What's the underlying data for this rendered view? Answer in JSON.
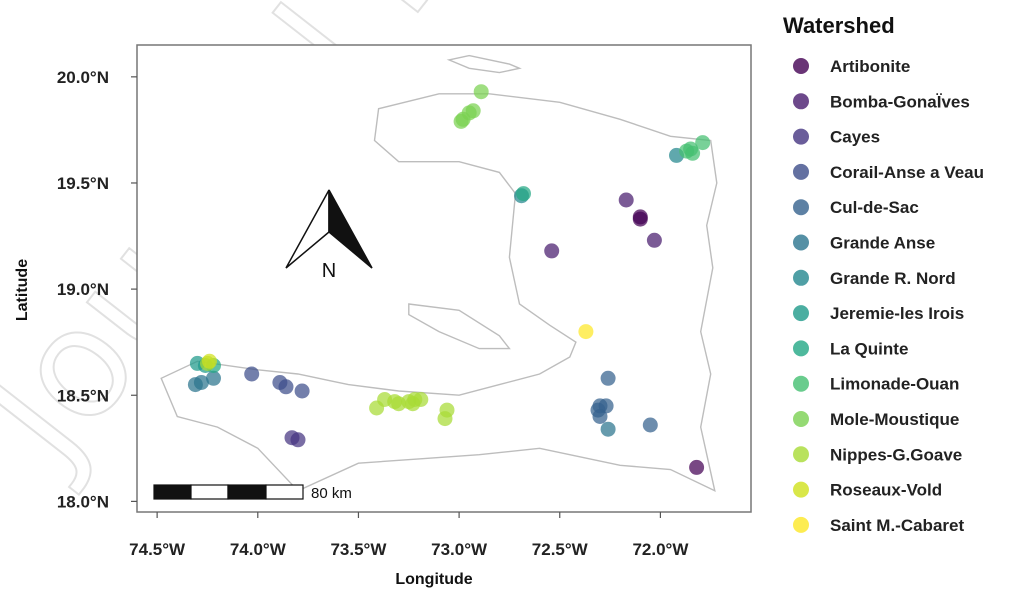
{
  "watermark": "Journal P",
  "chart_data": {
    "type": "scatter",
    "xlabel": "Longitude",
    "ylabel": "Latitude",
    "xlim": [
      -74.6,
      -71.55
    ],
    "ylim": [
      17.95,
      20.15
    ],
    "x_ticks": [
      {
        "value": -74.5,
        "label": "74.5°W"
      },
      {
        "value": -74.0,
        "label": "74.0°W"
      },
      {
        "value": -73.5,
        "label": "73.5°W"
      },
      {
        "value": -73.0,
        "label": "73.0°W"
      },
      {
        "value": -72.5,
        "label": "72.5°W"
      },
      {
        "value": -72.0,
        "label": "72.0°W"
      }
    ],
    "y_ticks": [
      {
        "value": 20.0,
        "label": "20.0°N"
      },
      {
        "value": 19.5,
        "label": "19.5°N"
      },
      {
        "value": 19.0,
        "label": "19.0°N"
      },
      {
        "value": 18.5,
        "label": "18.5°N"
      },
      {
        "value": 18.0,
        "label": "18.0°N"
      }
    ],
    "grid": false,
    "legend": {
      "title": "Watershed",
      "placement": "right"
    },
    "north_arrow": {
      "label": "N"
    },
    "scale_bar": {
      "label": "80 km"
    },
    "outlines": [
      {
        "name": "haiti-mainland",
        "points": [
          [
            -73.4,
            19.85
          ],
          [
            -73.1,
            19.92
          ],
          [
            -72.85,
            19.92
          ],
          [
            -72.5,
            19.88
          ],
          [
            -72.2,
            19.8
          ],
          [
            -71.95,
            19.72
          ],
          [
            -71.75,
            19.7
          ],
          [
            -71.72,
            19.5
          ],
          [
            -71.77,
            19.3
          ],
          [
            -71.74,
            19.1
          ],
          [
            -71.8,
            18.8
          ],
          [
            -71.75,
            18.6
          ],
          [
            -71.8,
            18.35
          ],
          [
            -71.73,
            18.05
          ],
          [
            -71.95,
            18.15
          ],
          [
            -72.2,
            18.17
          ],
          [
            -72.45,
            18.22
          ],
          [
            -72.6,
            18.25
          ],
          [
            -72.9,
            18.22
          ],
          [
            -73.2,
            18.2
          ],
          [
            -73.5,
            18.18
          ],
          [
            -73.8,
            18.05
          ],
          [
            -74.0,
            18.25
          ],
          [
            -74.2,
            18.35
          ],
          [
            -74.4,
            18.4
          ],
          [
            -74.48,
            18.58
          ],
          [
            -74.3,
            18.66
          ],
          [
            -74.0,
            18.62
          ],
          [
            -73.8,
            18.6
          ],
          [
            -73.55,
            18.55
          ],
          [
            -73.3,
            18.52
          ],
          [
            -73.0,
            18.5
          ],
          [
            -72.8,
            18.55
          ],
          [
            -72.6,
            18.6
          ],
          [
            -72.45,
            18.68
          ],
          [
            -72.42,
            18.75
          ],
          [
            -72.55,
            18.83
          ],
          [
            -72.7,
            18.93
          ],
          [
            -72.75,
            19.15
          ],
          [
            -72.72,
            19.45
          ],
          [
            -72.8,
            19.55
          ],
          [
            -73.0,
            19.6
          ],
          [
            -73.3,
            19.6
          ],
          [
            -73.42,
            19.7
          ],
          [
            -73.4,
            19.85
          ]
        ]
      },
      {
        "name": "ile-de-la-tortue",
        "points": [
          [
            -73.05,
            20.08
          ],
          [
            -72.95,
            20.1
          ],
          [
            -72.75,
            20.06
          ],
          [
            -72.7,
            20.04
          ],
          [
            -72.8,
            20.02
          ],
          [
            -72.95,
            20.04
          ],
          [
            -73.05,
            20.08
          ]
        ]
      },
      {
        "name": "ile-de-la-gonave",
        "points": [
          [
            -73.25,
            18.93
          ],
          [
            -73.0,
            18.9
          ],
          [
            -72.8,
            18.78
          ],
          [
            -72.75,
            18.72
          ],
          [
            -72.9,
            18.72
          ],
          [
            -73.1,
            18.8
          ],
          [
            -73.25,
            18.88
          ],
          [
            -73.25,
            18.93
          ]
        ]
      }
    ],
    "series": [
      {
        "name": "Artibonite",
        "color": "#440154",
        "points": [
          [
            -72.1,
            19.33
          ],
          [
            -72.1,
            19.34
          ],
          [
            -71.82,
            18.16
          ]
        ]
      },
      {
        "name": "Bomba-GonaÏves",
        "color": "#481c6e",
        "points": [
          [
            -72.54,
            19.18
          ],
          [
            -72.17,
            19.42
          ],
          [
            -72.03,
            19.23
          ]
        ]
      },
      {
        "name": "Cayes",
        "color": "#453581",
        "points": [
          [
            -73.83,
            18.3
          ],
          [
            -73.8,
            18.29
          ]
        ]
      },
      {
        "name": "Corail-Anse a Veau",
        "color": "#3d4d8a",
        "points": [
          [
            -74.03,
            18.6
          ],
          [
            -73.89,
            18.56
          ],
          [
            -73.86,
            18.54
          ],
          [
            -73.78,
            18.52
          ]
        ]
      },
      {
        "name": "Cul-de-Sac",
        "color": "#34618d",
        "points": [
          [
            -72.3,
            18.45
          ],
          [
            -72.31,
            18.43
          ],
          [
            -72.3,
            18.4
          ],
          [
            -72.27,
            18.45
          ],
          [
            -72.26,
            18.58
          ],
          [
            -72.05,
            18.36
          ]
        ]
      },
      {
        "name": "Grande Anse",
        "color": "#2b748e",
        "points": [
          [
            -74.31,
            18.55
          ],
          [
            -74.28,
            18.56
          ],
          [
            -74.22,
            18.58
          ],
          [
            -72.26,
            18.34
          ]
        ]
      },
      {
        "name": "Grande R. Nord",
        "color": "#23878e",
        "points": [
          [
            -72.69,
            19.44
          ],
          [
            -71.92,
            19.63
          ]
        ]
      },
      {
        "name": "Jeremie-les Irois",
        "color": "#1e9a8a",
        "points": [
          [
            -74.3,
            18.65
          ],
          [
            -74.26,
            18.64
          ]
        ]
      },
      {
        "name": "La Quinte",
        "color": "#22a884",
        "points": [
          [
            -72.68,
            19.45
          ],
          [
            -74.22,
            18.64
          ]
        ]
      },
      {
        "name": "Limonade-Ouan",
        "color": "#44bf70",
        "points": [
          [
            -71.85,
            19.66
          ],
          [
            -71.84,
            19.64
          ],
          [
            -71.79,
            19.69
          ],
          [
            -71.87,
            19.65
          ]
        ]
      },
      {
        "name": "Mole-Moustique",
        "color": "#7ad151",
        "points": [
          [
            -72.98,
            19.8
          ],
          [
            -72.95,
            19.83
          ],
          [
            -72.93,
            19.84
          ],
          [
            -72.89,
            19.93
          ],
          [
            -72.99,
            19.79
          ]
        ]
      },
      {
        "name": "Nippes-G.Goave",
        "color": "#a8db34",
        "points": [
          [
            -74.25,
            18.65
          ],
          [
            -73.41,
            18.44
          ],
          [
            -73.37,
            18.48
          ],
          [
            -73.32,
            18.47
          ],
          [
            -73.3,
            18.46
          ],
          [
            -73.25,
            18.47
          ],
          [
            -73.22,
            18.48
          ],
          [
            -73.19,
            18.48
          ],
          [
            -73.06,
            18.43
          ],
          [
            -73.07,
            18.39
          ],
          [
            -73.23,
            18.46
          ]
        ]
      },
      {
        "name": "Roseaux-Vold",
        "color": "#d0e11c",
        "points": [
          [
            -74.24,
            18.66
          ]
        ]
      },
      {
        "name": "Saint M.-Cabaret",
        "color": "#fde725",
        "points": [
          [
            -72.37,
            18.8
          ]
        ]
      }
    ]
  }
}
